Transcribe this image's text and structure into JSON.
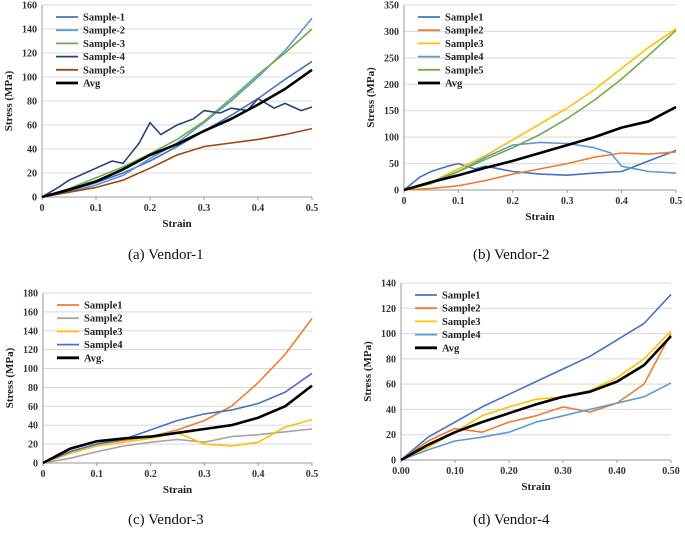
{
  "captions": [
    "(a)  Vendor-1",
    "(b)  Vendor-2",
    "(c)  Vendor-3",
    "(d)  Vendor-4"
  ],
  "chart_data": [
    {
      "type": "line",
      "title": "Vendor-1",
      "xlabel": "Strain",
      "ylabel": "Stress (MPa)",
      "xlim": [
        0,
        0.5
      ],
      "ylim": [
        0,
        160
      ],
      "xticks": [
        "0",
        "0.1",
        "0.2",
        "0.3",
        "0.4",
        "0.5"
      ],
      "yticks": [
        "0",
        "20",
        "40",
        "60",
        "80",
        "100",
        "120",
        "140",
        "160"
      ],
      "legend_position": "top-left",
      "series": [
        {
          "name": "Sample-1",
          "color": "#4472c4",
          "x": [
            0,
            0.05,
            0.1,
            0.15,
            0.2,
            0.25,
            0.3,
            0.35,
            0.4,
            0.45,
            0.5
          ],
          "values": [
            0,
            5,
            12,
            20,
            30,
            42,
            55,
            68,
            82,
            98,
            113
          ]
        },
        {
          "name": "Sample-2",
          "color": "#5b9bd5",
          "x": [
            0,
            0.05,
            0.1,
            0.15,
            0.2,
            0.25,
            0.3,
            0.35,
            0.4,
            0.45,
            0.5
          ],
          "values": [
            0,
            4,
            10,
            18,
            32,
            45,
            62,
            80,
            100,
            122,
            149
          ]
        },
        {
          "name": "Sample-3",
          "color": "#70ad47",
          "x": [
            0,
            0.05,
            0.1,
            0.15,
            0.2,
            0.25,
            0.3,
            0.35,
            0.4,
            0.45,
            0.5
          ],
          "values": [
            0,
            7,
            16,
            25,
            36,
            48,
            63,
            82,
            102,
            120,
            140
          ]
        },
        {
          "name": "Sample-4",
          "color": "#264478",
          "x": [
            0,
            0.03,
            0.05,
            0.08,
            0.1,
            0.13,
            0.15,
            0.18,
            0.2,
            0.22,
            0.25,
            0.28,
            0.3,
            0.33,
            0.35,
            0.38,
            0.4,
            0.43,
            0.45,
            0.48,
            0.5
          ],
          "values": [
            0,
            8,
            14,
            20,
            24,
            30,
            28,
            45,
            62,
            52,
            60,
            65,
            72,
            70,
            74,
            72,
            82,
            74,
            78,
            72,
            75
          ]
        },
        {
          "name": "Sample-5",
          "color": "#9e480e",
          "x": [
            0,
            0.05,
            0.1,
            0.15,
            0.2,
            0.25,
            0.3,
            0.35,
            0.4,
            0.45,
            0.5
          ],
          "values": [
            0,
            4,
            8,
            14,
            24,
            35,
            42,
            45,
            48,
            52,
            57
          ]
        },
        {
          "name": "Avg",
          "color": "#000000",
          "bold": true,
          "x": [
            0,
            0.05,
            0.1,
            0.15,
            0.2,
            0.25,
            0.3,
            0.35,
            0.4,
            0.45,
            0.5
          ],
          "values": [
            0,
            6,
            13,
            23,
            35,
            44,
            55,
            65,
            77,
            90,
            106
          ]
        }
      ]
    },
    {
      "type": "line",
      "title": "Vendor-2",
      "xlabel": "Strain",
      "ylabel": "Stress (MPa)",
      "xlim": [
        0,
        0.5
      ],
      "ylim": [
        0,
        350
      ],
      "xticks": [
        "0",
        "0.1",
        "0.2",
        "0.3",
        "0.4",
        "0.5"
      ],
      "yticks": [
        "0",
        "50",
        "100",
        "150",
        "200",
        "250",
        "300",
        "350"
      ],
      "legend_position": "top-left",
      "series": [
        {
          "name": "Sample1",
          "color": "#4472c4",
          "x": [
            0,
            0.03,
            0.05,
            0.08,
            0.1,
            0.13,
            0.15,
            0.2,
            0.25,
            0.3,
            0.35,
            0.4,
            0.45,
            0.5
          ],
          "values": [
            0,
            25,
            35,
            45,
            50,
            40,
            45,
            35,
            30,
            28,
            32,
            35,
            55,
            75
          ]
        },
        {
          "name": "Sample2",
          "color": "#ed7d31",
          "x": [
            0,
            0.05,
            0.1,
            0.15,
            0.2,
            0.25,
            0.3,
            0.35,
            0.4,
            0.45,
            0.5
          ],
          "values": [
            0,
            3,
            8,
            18,
            30,
            40,
            50,
            62,
            70,
            68,
            72
          ]
        },
        {
          "name": "Sample3",
          "color": "#ffc000",
          "x": [
            0,
            0.05,
            0.1,
            0.15,
            0.2,
            0.25,
            0.3,
            0.35,
            0.4,
            0.45,
            0.5
          ],
          "values": [
            0,
            15,
            40,
            65,
            95,
            125,
            155,
            190,
            230,
            270,
            305
          ]
        },
        {
          "name": "Sample4",
          "color": "#5b9bd5",
          "x": [
            0,
            0.05,
            0.1,
            0.15,
            0.2,
            0.25,
            0.3,
            0.35,
            0.38,
            0.4,
            0.45,
            0.5
          ],
          "values": [
            0,
            15,
            35,
            62,
            85,
            90,
            88,
            80,
            70,
            45,
            35,
            32
          ]
        },
        {
          "name": "Sample5",
          "color": "#70ad47",
          "x": [
            0,
            0.05,
            0.1,
            0.15,
            0.2,
            0.25,
            0.3,
            0.35,
            0.4,
            0.45,
            0.5
          ],
          "values": [
            0,
            12,
            35,
            58,
            80,
            105,
            135,
            170,
            210,
            255,
            302
          ]
        },
        {
          "name": "Avg",
          "color": "#000000",
          "bold": true,
          "x": [
            0,
            0.05,
            0.1,
            0.15,
            0.2,
            0.25,
            0.3,
            0.35,
            0.4,
            0.45,
            0.5
          ],
          "values": [
            0,
            15,
            28,
            42,
            55,
            70,
            85,
            100,
            118,
            130,
            157
          ]
        }
      ]
    },
    {
      "type": "line",
      "title": "Vendor-3",
      "xlabel": "Strain",
      "ylabel": "Stress (MPa)",
      "xlim": [
        0,
        0.5
      ],
      "ylim": [
        0,
        180
      ],
      "xticks": [
        "0",
        "0.1",
        "0.2",
        "0.3",
        "0.4",
        "0.5"
      ],
      "yticks": [
        "0",
        "20",
        "40",
        "60",
        "80",
        "100",
        "120",
        "140",
        "160",
        "180"
      ],
      "legend_position": "top-left",
      "series": [
        {
          "name": "Sample1",
          "color": "#ed7d31",
          "x": [
            0,
            0.05,
            0.1,
            0.15,
            0.2,
            0.25,
            0.3,
            0.35,
            0.4,
            0.45,
            0.5
          ],
          "values": [
            0,
            12,
            20,
            24,
            28,
            35,
            45,
            60,
            85,
            115,
            153
          ]
        },
        {
          "name": "Sample2",
          "color": "#a5a5a5",
          "x": [
            0,
            0.05,
            0.1,
            0.15,
            0.2,
            0.25,
            0.3,
            0.35,
            0.4,
            0.45,
            0.5
          ],
          "values": [
            0,
            5,
            12,
            18,
            22,
            25,
            22,
            28,
            30,
            33,
            36
          ]
        },
        {
          "name": "Sample3",
          "color": "#ffc000",
          "x": [
            0,
            0.05,
            0.1,
            0.15,
            0.2,
            0.25,
            0.3,
            0.35,
            0.4,
            0.45,
            0.5
          ],
          "values": [
            0,
            10,
            18,
            22,
            26,
            32,
            20,
            18,
            22,
            38,
            46
          ]
        },
        {
          "name": "Sample4",
          "color": "#4472c4",
          "x": [
            0,
            0.05,
            0.1,
            0.15,
            0.2,
            0.25,
            0.3,
            0.35,
            0.4,
            0.45,
            0.5
          ],
          "values": [
            0,
            12,
            20,
            25,
            35,
            45,
            52,
            56,
            63,
            75,
            95
          ]
        },
        {
          "name": "Avg.",
          "color": "#000000",
          "bold": true,
          "x": [
            0,
            0.05,
            0.1,
            0.15,
            0.2,
            0.25,
            0.3,
            0.35,
            0.4,
            0.45,
            0.5
          ],
          "values": [
            0,
            15,
            23,
            26,
            28,
            32,
            36,
            40,
            48,
            60,
            82
          ]
        }
      ]
    },
    {
      "type": "line",
      "title": "Vendor-4",
      "xlabel": "Strain",
      "ylabel": "Stress (MPa)",
      "xlim": [
        0,
        0.5
      ],
      "ylim": [
        0,
        140
      ],
      "xticks": [
        "0.00",
        "0.10",
        "0.20",
        "0.30",
        "0.40",
        "0.50"
      ],
      "yticks": [
        "0",
        "20",
        "40",
        "60",
        "80",
        "100",
        "120",
        "140"
      ],
      "legend_position": "top-left",
      "series": [
        {
          "name": "Sample1",
          "color": "#4472c4",
          "x": [
            0,
            0.05,
            0.1,
            0.15,
            0.2,
            0.25,
            0.3,
            0.35,
            0.4,
            0.45,
            0.5
          ],
          "values": [
            0,
            18,
            30,
            42,
            52,
            62,
            72,
            82,
            95,
            108,
            131
          ]
        },
        {
          "name": "Sample2",
          "color": "#ed7d31",
          "x": [
            0,
            0.05,
            0.1,
            0.15,
            0.2,
            0.25,
            0.3,
            0.35,
            0.4,
            0.45,
            0.5
          ],
          "values": [
            0,
            15,
            25,
            22,
            30,
            35,
            42,
            38,
            45,
            60,
            100
          ]
        },
        {
          "name": "Sample3",
          "color": "#ffc000",
          "x": [
            0,
            0.05,
            0.1,
            0.15,
            0.2,
            0.25,
            0.3,
            0.35,
            0.4,
            0.45,
            0.5
          ],
          "values": [
            0,
            10,
            22,
            35,
            42,
            48,
            50,
            55,
            65,
            80,
            102
          ]
        },
        {
          "name": "Sample4",
          "color": "#5b9bd5",
          "x": [
            0,
            0.05,
            0.1,
            0.15,
            0.2,
            0.25,
            0.3,
            0.35,
            0.4,
            0.45,
            0.5
          ],
          "values": [
            0,
            8,
            15,
            18,
            22,
            30,
            35,
            40,
            45,
            50,
            61
          ]
        },
        {
          "name": "Avg",
          "color": "#000000",
          "bold": true,
          "x": [
            0,
            0.05,
            0.1,
            0.15,
            0.2,
            0.25,
            0.3,
            0.35,
            0.4,
            0.45,
            0.5
          ],
          "values": [
            0,
            12,
            22,
            30,
            37,
            44,
            50,
            54,
            62,
            75,
            98
          ]
        }
      ]
    }
  ]
}
